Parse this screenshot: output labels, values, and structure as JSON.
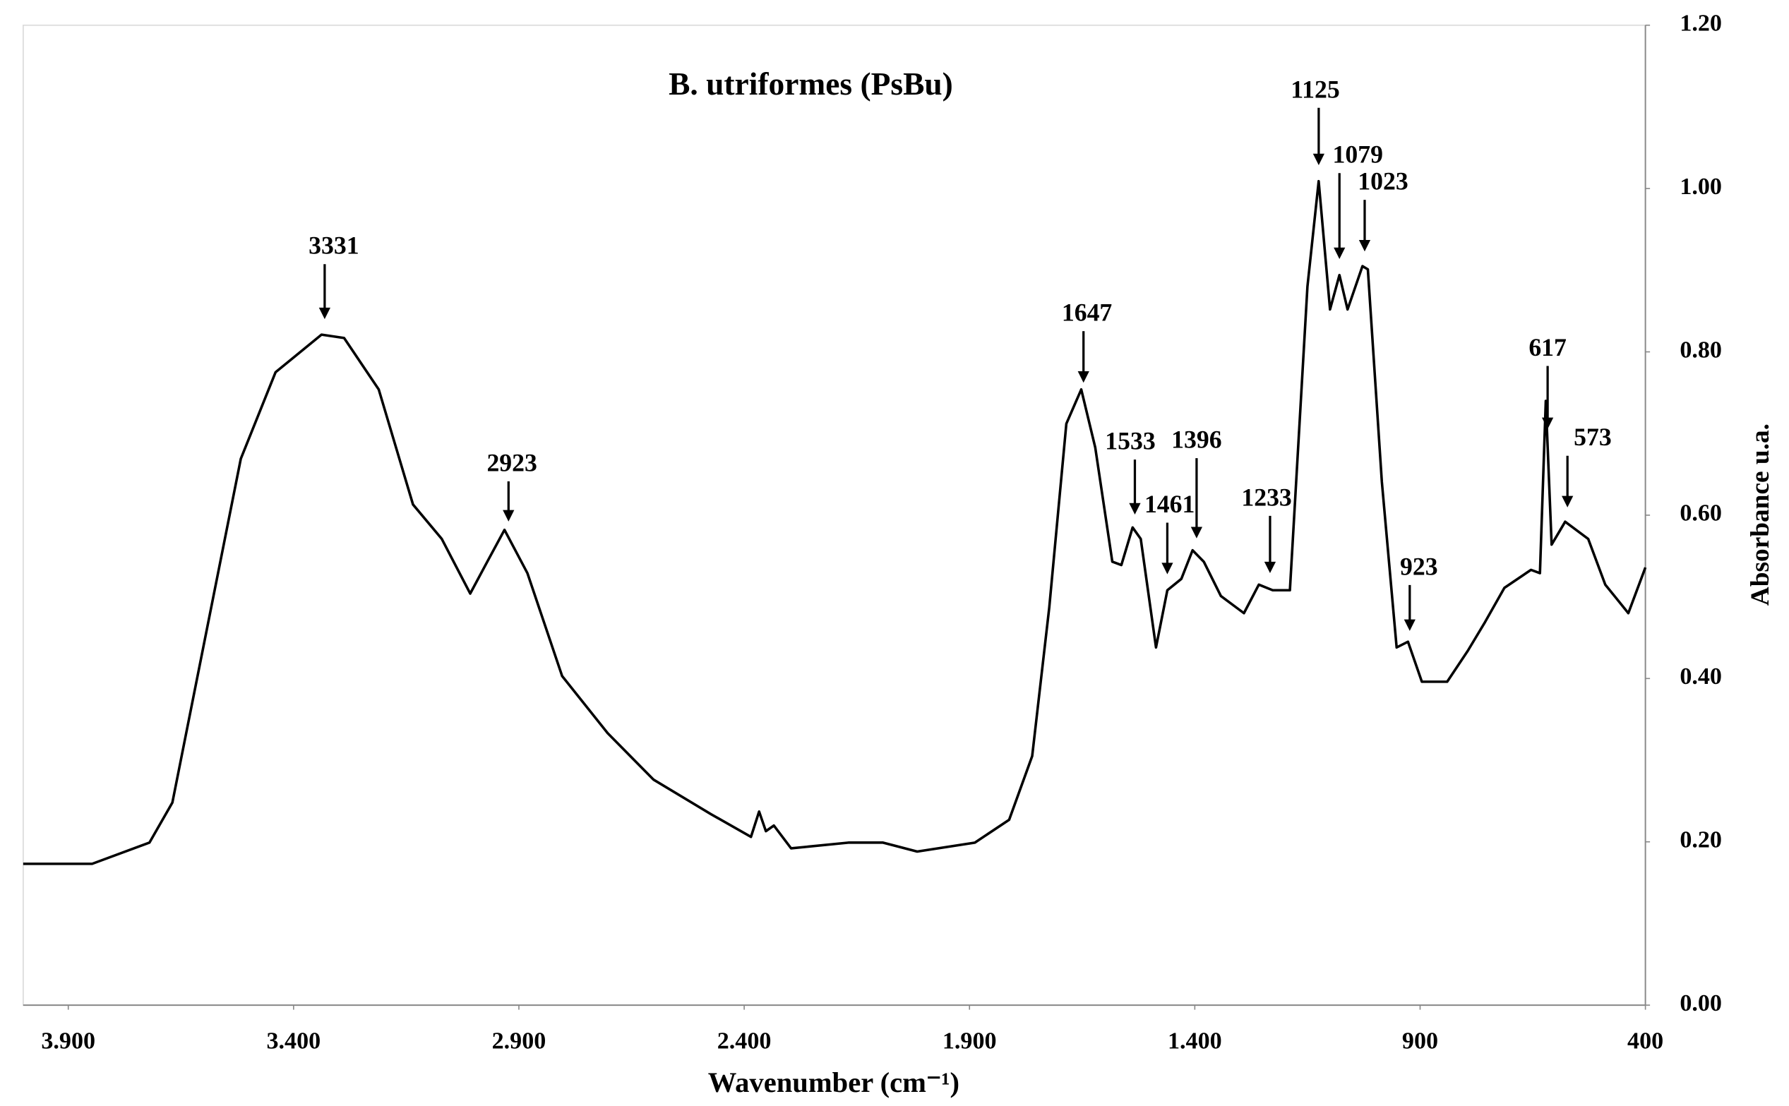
{
  "chart_data": {
    "type": "line",
    "title": "B. utriformes (PsBu)",
    "x_label": "Wavenumber (cm⁻¹)",
    "y_label": "Absorbance u.a.",
    "color": "#000000",
    "xlim": [
      4000,
      400
    ],
    "xticks": [
      {
        "value": 3900,
        "label": "3.900"
      },
      {
        "value": 3400,
        "label": "3.400"
      },
      {
        "value": 2900,
        "label": "2.900"
      },
      {
        "value": 2400,
        "label": "2.400"
      },
      {
        "value": 1900,
        "label": "1.900"
      },
      {
        "value": 1400,
        "label": "1.400"
      },
      900,
      400
    ],
    "ylim": [
      0,
      1.2
    ],
    "yticks": [
      {
        "value": 0,
        "label": "0.00"
      },
      {
        "value": 0.2,
        "label": "0.20"
      },
      {
        "value": 0.4,
        "label": "0.40"
      },
      {
        "value": 0.6,
        "label": "0.60"
      },
      {
        "value": 0.8,
        "label": "0.80"
      },
      {
        "value": 1.0,
        "label": "1.00"
      },
      {
        "value": 1.2,
        "label": "1.20"
      }
    ],
    "x": [
      4000,
      3847,
      3720,
      3669,
      3593,
      3517,
      3440,
      3338,
      3288,
      3211,
      3135,
      3071,
      3008,
      2970,
      2932,
      2881,
      2804,
      2703,
      2601,
      2474,
      2385,
      2367,
      2352,
      2334,
      2296,
      2169,
      2092,
      2016,
      1888,
      1812,
      1761,
      1723,
      1685,
      1652,
      1621,
      1583,
      1563,
      1538,
      1520,
      1486,
      1461,
      1430,
      1405,
      1380,
      1342,
      1291,
      1258,
      1227,
      1189,
      1150,
      1125,
      1100,
      1079,
      1061,
      1028,
      1016,
      985,
      952,
      927,
      896,
      840,
      794,
      756,
      713,
      654,
      634,
      621,
      608,
      578,
      527,
      489,
      438,
      400
    ],
    "values": [
      0.173,
      0.173,
      0.199,
      0.248,
      0.459,
      0.669,
      0.775,
      0.821,
      0.817,
      0.754,
      0.613,
      0.571,
      0.504,
      0.543,
      0.582,
      0.529,
      0.403,
      0.333,
      0.276,
      0.234,
      0.206,
      0.237,
      0.213,
      0.22,
      0.192,
      0.199,
      0.199,
      0.188,
      0.199,
      0.227,
      0.305,
      0.487,
      0.712,
      0.754,
      0.683,
      0.543,
      0.539,
      0.585,
      0.571,
      0.438,
      0.508,
      0.522,
      0.557,
      0.543,
      0.501,
      0.48,
      0.515,
      0.508,
      0.508,
      0.88,
      1.009,
      0.852,
      0.894,
      0.852,
      0.905,
      0.901,
      0.641,
      0.438,
      0.445,
      0.396,
      0.396,
      0.434,
      0.469,
      0.511,
      0.533,
      0.529,
      0.74,
      0.564,
      0.592,
      0.571,
      0.515,
      0.48,
      0.536
    ],
    "peaks": [
      3331,
      2923,
      1647,
      1533,
      1461,
      1396,
      1233,
      1125,
      1079,
      1023,
      923,
      617,
      573
    ]
  }
}
